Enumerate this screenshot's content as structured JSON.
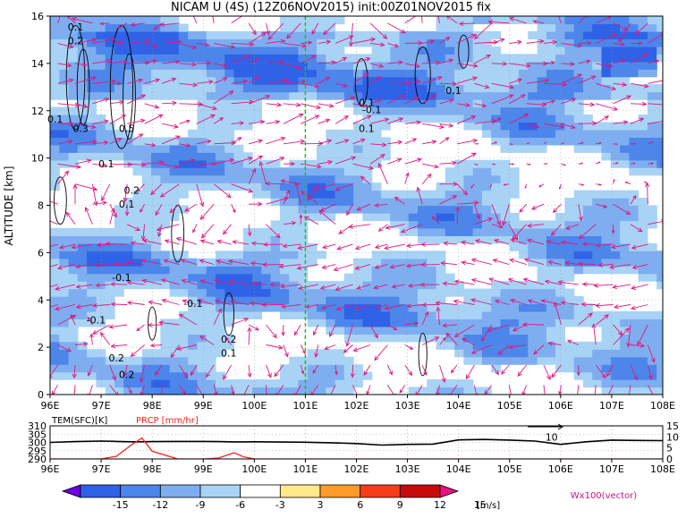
{
  "chart_data": [
    {
      "type": "heatmap",
      "title": "NICAM U (4S)  (12Z06NOV2015)  init:00Z01NOV2015  fix",
      "ylabel": "ALTITUDE [km]",
      "x_ticks": [
        "96E",
        "97E",
        "98E",
        "99E",
        "100E",
        "101E",
        "102E",
        "103E",
        "104E",
        "105E",
        "106E",
        "107E",
        "108E"
      ],
      "y_ticks": [
        "0",
        "2",
        "4",
        "6",
        "8",
        "10",
        "12",
        "14",
        "16"
      ],
      "xlim": [
        96,
        108
      ],
      "ylim": [
        0,
        16
      ],
      "marker_line_x": 101,
      "contour_labels": [
        {
          "text": "0.1",
          "x": 96.5,
          "y": 15.4
        },
        {
          "text": "0.2",
          "x": 96.5,
          "y": 14.8
        },
        {
          "text": "0.1",
          "x": 96.1,
          "y": 11.5
        },
        {
          "text": "0.3",
          "x": 96.6,
          "y": 11.1
        },
        {
          "text": "0.5",
          "x": 97.5,
          "y": 11.1
        },
        {
          "text": "0.1",
          "x": 97.1,
          "y": 9.6
        },
        {
          "text": "0.2",
          "x": 97.6,
          "y": 8.5
        },
        {
          "text": "0.1",
          "x": 97.5,
          "y": 7.9
        },
        {
          "text": "0.1",
          "x": 102.2,
          "y": 12.2
        },
        {
          "text": "-0.1",
          "x": 102.3,
          "y": 11.9
        },
        {
          "text": "0.1",
          "x": 102.2,
          "y": 11.1
        },
        {
          "text": "0.1",
          "x": 103.9,
          "y": 12.7
        },
        {
          "text": "-0.1",
          "x": 97.4,
          "y": 4.8
        },
        {
          "text": "-0.1",
          "x": 98.8,
          "y": 3.7
        },
        {
          "text": "-0.1",
          "x": 96.9,
          "y": 3.0
        },
        {
          "text": "0.2",
          "x": 97.3,
          "y": 1.4
        },
        {
          "text": "0.2",
          "x": 97.5,
          "y": 0.7
        },
        {
          "text": "0.2",
          "x": 99.5,
          "y": 2.2
        },
        {
          "text": "0.1",
          "x": 99.5,
          "y": 1.6
        }
      ]
    },
    {
      "type": "line",
      "legend": [
        "TEM(SFC)[K]",
        "PRCP [mm/hr]"
      ],
      "left_ticks": [
        "310",
        "305",
        "300",
        "295",
        "290"
      ],
      "right_ticks": [
        "15",
        "10",
        "5",
        "0"
      ],
      "left_ylim": [
        290,
        310
      ],
      "right_ylim": [
        0,
        15
      ],
      "x": [
        96,
        96.5,
        97,
        97.3,
        97.6,
        97.8,
        98,
        98.5,
        99,
        99.3,
        99.6,
        99.8,
        100,
        100.5,
        101,
        101.5,
        102,
        102.5,
        103,
        103.5,
        104,
        104.5,
        105,
        105.5,
        106,
        106.5,
        107,
        107.5,
        108
      ],
      "series": [
        {
          "name": "TEM(SFC)[K]",
          "color": "#000000",
          "values": [
            300,
            300.5,
            300.8,
            300.6,
            300.4,
            300.4,
            300.5,
            300.6,
            300.6,
            300.5,
            300.3,
            300.3,
            300.4,
            300.2,
            300.1,
            299.8,
            299.3,
            298.4,
            298.8,
            299.0,
            301.5,
            301.8,
            301.4,
            300.8,
            298.8,
            300.4,
            301.4,
            301.2,
            301.1
          ]
        },
        {
          "name": "PRCP [mm/hr]",
          "color": "#ff2020",
          "values": [
            0,
            0,
            0,
            1.2,
            6.5,
            9.5,
            3.5,
            0,
            0,
            0.4,
            2.8,
            0.9,
            0,
            0,
            0,
            0,
            0,
            0,
            0,
            0,
            0,
            0,
            0,
            0,
            0,
            0,
            0,
            0,
            0
          ]
        }
      ],
      "annotation": {
        "text": "10",
        "x": 105.7,
        "y": 10
      }
    }
  ],
  "colorbar": {
    "ticks": [
      "-15",
      "-12",
      "-9",
      "-6",
      "-3",
      "3",
      "6",
      "9",
      "12",
      "15"
    ],
    "unit": "[m/s]",
    "colors": [
      "#6a00e0",
      "#2f62e6",
      "#4c86ea",
      "#7eaef0",
      "#a8d3f5",
      "#ffffff",
      "#fde88a",
      "#fd9b2a",
      "#f53c1a",
      "#c70a0a",
      "#e8117f"
    ],
    "vector_label": "Wx100(vector)"
  }
}
